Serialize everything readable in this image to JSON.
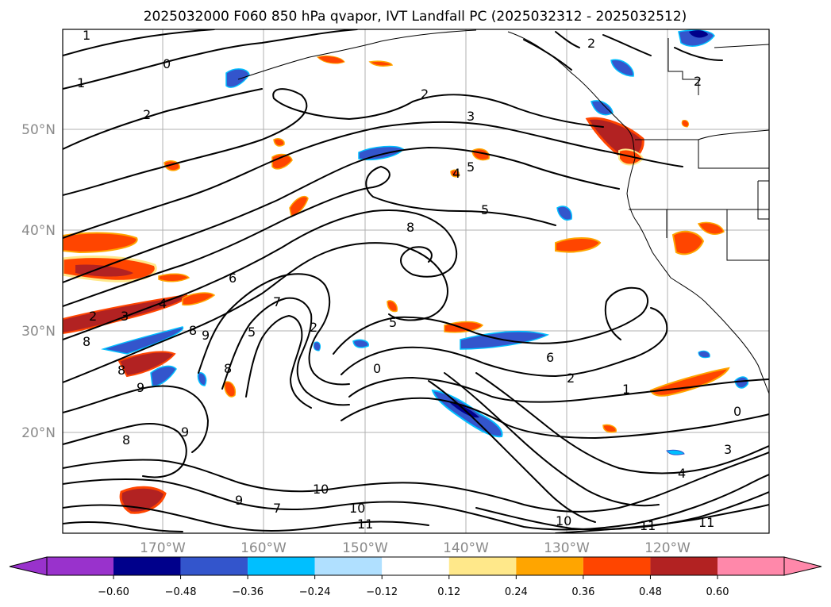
{
  "title": "2025032000 F060 850 hPa qvapor, IVT Landfall PC (2025032312 - 2025032512)",
  "map": {
    "lat_labels": [
      "50°N",
      "40°N",
      "30°N",
      "20°N"
    ],
    "lon_labels": [
      "170°W",
      "160°W",
      "150°W",
      "140°W",
      "130°W",
      "120°W"
    ],
    "contour_labels": [
      "1",
      "0",
      "1",
      "2",
      "2",
      "3",
      "5",
      "4",
      "5",
      "8",
      "6",
      "4",
      "3",
      "2",
      "8",
      "8",
      "9",
      "5",
      "7",
      "2",
      "8",
      "9",
      "5",
      "0",
      "8",
      "8",
      "9",
      "6",
      "2",
      "1",
      "0",
      "3",
      "4",
      "2",
      "2",
      "10",
      "10",
      "11",
      "9",
      "7",
      "10",
      "11",
      "11"
    ]
  },
  "colorbar": {
    "ticks": [
      "−0.60",
      "−0.48",
      "−0.36",
      "−0.24",
      "−0.12",
      "0.12",
      "0.24",
      "0.36",
      "0.48",
      "0.60"
    ],
    "colors": [
      "#9932cc",
      "#00008b",
      "#3355cc",
      "#00bfff",
      "#b0e0ff",
      "#ffffff",
      "#ffe88a",
      "#ffa500",
      "#ff4500",
      "#b22222",
      "#ff88aa"
    ]
  },
  "chart_data": {
    "type": "heatmap",
    "title": "2025032000 F060 850 hPa qvapor, IVT Landfall PC (2025032312 - 2025032512)",
    "xlabel": "",
    "ylabel": "",
    "x_ticks": [
      "170°W",
      "160°W",
      "150°W",
      "140°W",
      "130°W",
      "120°W"
    ],
    "y_ticks": [
      "50°N",
      "40°N",
      "30°N",
      "20°N"
    ],
    "color_levels": [
      -0.6,
      -0.48,
      -0.36,
      -0.24,
      -0.12,
      0.12,
      0.24,
      0.36,
      0.48,
      0.6
    ],
    "colorbar_extend": "both"
  }
}
